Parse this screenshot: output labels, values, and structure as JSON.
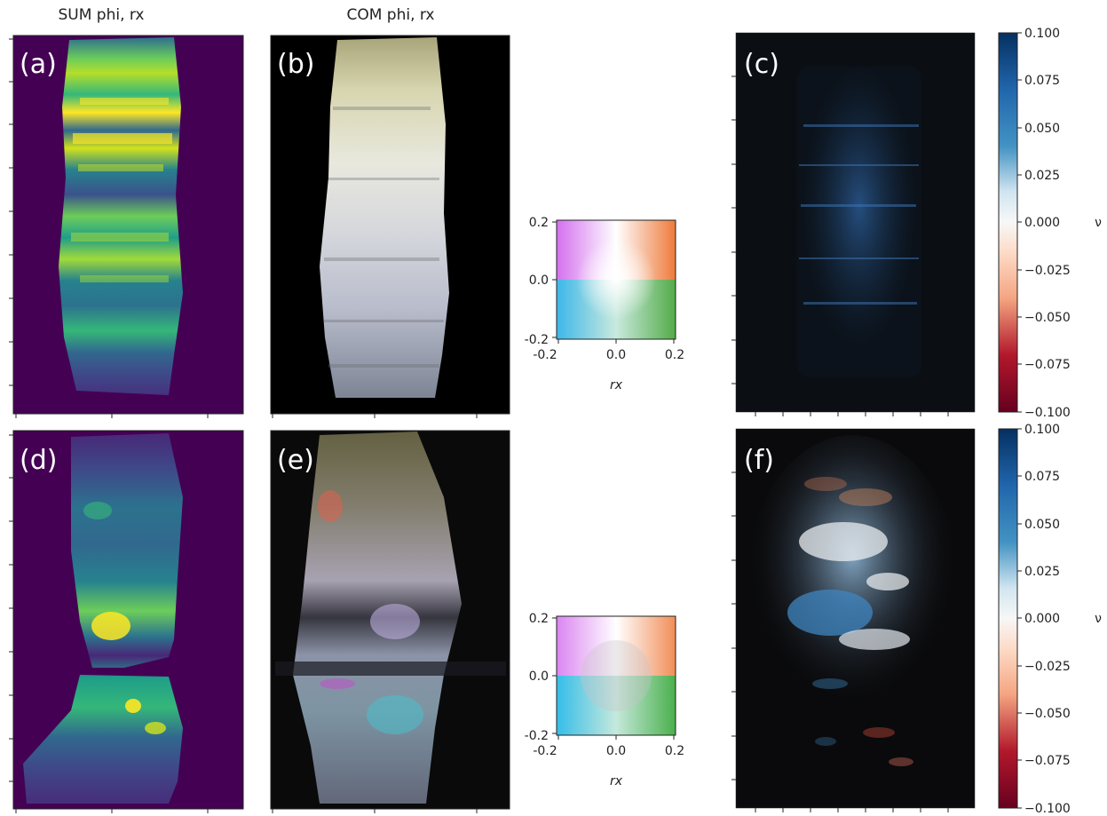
{
  "titles": {
    "col_a": "SUM phi, rx",
    "col_b": "COM phi, rx"
  },
  "panel_labels": [
    "(a)",
    "(b)",
    "(c)",
    "(d)",
    "(e)",
    "(f)"
  ],
  "colors": {
    "viridis_low": "#440154",
    "viridis_mid": "#21918c",
    "viridis_high": "#fde725",
    "rdbu_neg": "#67001f",
    "rdbu_zero": "#f7f7f7",
    "rdbu_pos": "#053061"
  },
  "chart_data": [
    {
      "type": "heatmap",
      "panel": "(a)",
      "title": "SUM phi, rx",
      "colormap": "viridis",
      "axes_tick_labels_visible": false
    },
    {
      "type": "heatmap",
      "panel": "(b)",
      "title": "COM phi, rx",
      "colormap": "2D phi/rx color key"
    },
    {
      "type": "heatmap",
      "panel": "key-top",
      "xlabel": "rx",
      "xticks": [
        "-0.2",
        "0.0",
        "0.2"
      ],
      "yticks": [
        "0.2",
        "0.0",
        "-0.2"
      ],
      "xlim": [
        -0.2,
        0.2
      ],
      "ylim": [
        -0.2,
        0.2
      ]
    },
    {
      "type": "heatmap",
      "panel": "(c)",
      "colormap": "RdBu",
      "colorbar_label": "ν",
      "colorbar_range": [
        -0.1,
        0.1
      ],
      "colorbar_ticks": [
        "0.100",
        "0.075",
        "0.050",
        "0.025",
        "0.000",
        "−0.025",
        "−0.050",
        "−0.075",
        "−0.100"
      ]
    },
    {
      "type": "heatmap",
      "panel": "(d)",
      "colormap": "viridis"
    },
    {
      "type": "heatmap",
      "panel": "(e)",
      "colormap": "2D phi/rx color key"
    },
    {
      "type": "heatmap",
      "panel": "key-bottom",
      "xlabel": "rx",
      "xticks": [
        "-0.2",
        "0.0",
        "0.2"
      ],
      "yticks": [
        "0.2",
        "0.0",
        "-0.2"
      ],
      "xlim": [
        -0.2,
        0.2
      ],
      "ylim": [
        -0.2,
        0.2
      ]
    },
    {
      "type": "heatmap",
      "panel": "(f)",
      "colormap": "RdBu",
      "colorbar_label": "ν",
      "colorbar_range": [
        -0.1,
        0.1
      ],
      "colorbar_ticks": [
        "0.100",
        "0.075",
        "0.050",
        "0.025",
        "0.000",
        "−0.025",
        "−0.050",
        "−0.075",
        "−0.100"
      ]
    }
  ]
}
